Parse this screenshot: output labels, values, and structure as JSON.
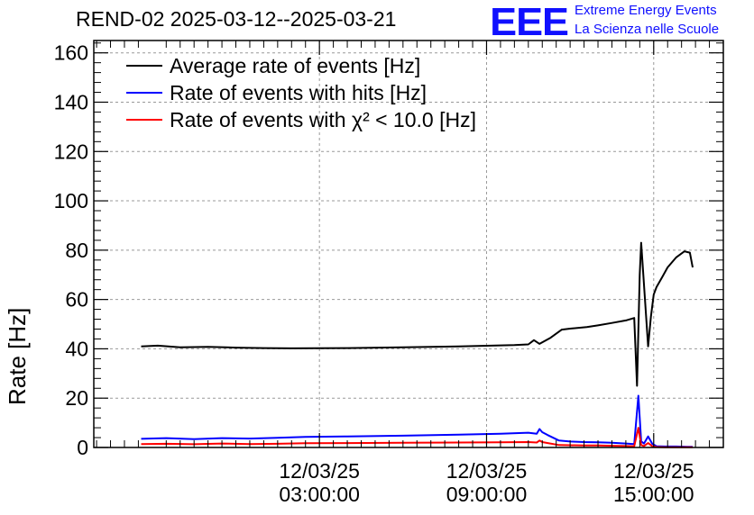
{
  "header": {
    "title": "REND-02 2025-03-12--2025-03-21",
    "logo": "EEE",
    "logo_line1": "Extreme Energy Events",
    "logo_line2": "La Scienza nelle Scuole"
  },
  "colors": {
    "average": "#000000",
    "hits": "#0000ff",
    "chi2": "#ff0000",
    "logo": "#1010ff",
    "grid": "#999999"
  },
  "chart_data": {
    "type": "line",
    "title": "REND-02 2025-03-12--2025-03-21",
    "xlabel": "",
    "ylabel": "Rate [Hz]",
    "ylim": [
      0,
      165
    ],
    "yticks": [
      0,
      20,
      40,
      60,
      80,
      100,
      120,
      140,
      160
    ],
    "xlim_hours": [
      -5.1,
      17.5
    ],
    "xticks": [
      {
        "hour": 3,
        "line1": "12/03/25",
        "line2": "03:00:00"
      },
      {
        "hour": 9,
        "line1": "12/03/25",
        "line2": "09:00:00"
      },
      {
        "hour": 15,
        "line1": "12/03/25",
        "line2": "15:00:00"
      }
    ],
    "grid": true,
    "legend_position": "top-left",
    "series": [
      {
        "name": "Average rate of events [Hz]",
        "color": "#000000",
        "x": [
          -3.4,
          -2.8,
          -2.0,
          -1.0,
          0.0,
          1.0,
          2.0,
          4.0,
          6.0,
          8.0,
          10.0,
          10.5,
          10.7,
          10.9,
          11.3,
          11.7,
          12.0,
          12.6,
          13.0,
          13.5,
          14.0,
          14.3,
          14.4,
          14.5,
          14.55,
          14.8,
          14.9,
          15.0,
          15.1,
          15.3,
          15.5,
          15.8,
          16.1,
          16.3,
          16.4
        ],
        "y": [
          41,
          41.3,
          40.6,
          40.8,
          40.5,
          40.3,
          40.2,
          40.3,
          40.6,
          41.0,
          41.5,
          41.8,
          43.5,
          42.0,
          44.5,
          47.8,
          48.2,
          48.8,
          49.5,
          50.5,
          51.5,
          52.5,
          25,
          70,
          83,
          41,
          53,
          62,
          65,
          69,
          73,
          77,
          79.5,
          79,
          73
        ]
      },
      {
        "name": "Rate of events with hits [Hz]",
        "color": "#0000ff",
        "x": [
          -3.4,
          -2.5,
          -1.5,
          -0.5,
          0.5,
          1.5,
          2.5,
          4.0,
          6.0,
          8.0,
          9.5,
          10.5,
          10.8,
          10.9,
          11.0,
          11.2,
          11.6,
          12.0,
          12.5,
          13.0,
          13.5,
          14.0,
          14.3,
          14.45,
          14.55,
          14.65,
          14.8,
          14.95,
          15.1,
          15.4,
          15.8,
          16.2,
          16.4
        ],
        "y": [
          3.5,
          3.8,
          3.4,
          3.8,
          3.6,
          3.9,
          4.3,
          4.5,
          4.8,
          5.2,
          5.6,
          6.0,
          5.6,
          7.5,
          6.2,
          5.0,
          2.8,
          2.4,
          2.2,
          2.1,
          1.9,
          1.6,
          1.4,
          21,
          2.5,
          1.6,
          4.5,
          1.5,
          0.5,
          0.4,
          0.4,
          0.3,
          0.3
        ]
      },
      {
        "name": "Rate of events with χ² < 10.0 [Hz]",
        "color": "#ff0000",
        "x": [
          -3.4,
          -2.5,
          -1.5,
          -0.5,
          0.5,
          1.5,
          2.5,
          4.0,
          6.0,
          8.0,
          9.5,
          10.5,
          10.8,
          10.9,
          11.0,
          11.2,
          11.6,
          12.0,
          12.5,
          13.0,
          13.5,
          14.0,
          14.3,
          14.45,
          14.55,
          14.65,
          14.8,
          14.95,
          15.1,
          15.4,
          15.8,
          16.2,
          16.4
        ],
        "y": [
          1.4,
          1.5,
          1.3,
          1.6,
          1.4,
          1.5,
          1.7,
          1.8,
          1.9,
          2.0,
          2.1,
          2.2,
          2.0,
          2.8,
          2.2,
          1.8,
          1.0,
          0.9,
          0.8,
          0.8,
          0.7,
          0.6,
          0.5,
          8.0,
          1.0,
          0.6,
          1.8,
          0.5,
          0.2,
          0.1,
          0.1,
          0.1,
          0.1
        ]
      }
    ],
    "legend": [
      {
        "label": "Average rate of events [Hz]",
        "color": "#000000"
      },
      {
        "label": "Rate of events with hits [Hz]",
        "color": "#0000ff"
      },
      {
        "label": "Rate of events with χ² < 10.0 [Hz]",
        "color": "#ff0000"
      }
    ]
  }
}
